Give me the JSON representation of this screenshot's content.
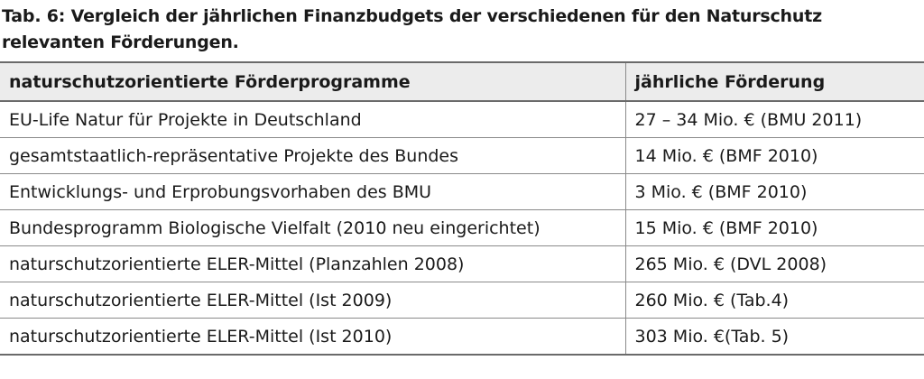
{
  "caption": "Tab. 6: Vergleich der jährlichen Finanzbudgets der verschiedenen für den Naturschutz relevanten Förderungen.",
  "table": {
    "headers": [
      "naturschutzorientierte Förderprogramme",
      "jährliche Förderung"
    ],
    "rows": [
      [
        "EU-Life Natur für Projekte in Deutschland",
        "27 – 34 Mio. € (BMU 2011)"
      ],
      [
        "gesamtstaatlich-repräsentative Projekte des Bundes",
        "14 Mio. € (BMF 2010)"
      ],
      [
        "Entwicklungs- und Erprobungsvorhaben des BMU",
        "3 Mio. € (BMF 2010)"
      ],
      [
        "Bundesprogramm Biologische Vielfalt (2010 neu eingerichtet)",
        "15 Mio. € (BMF 2010)"
      ],
      [
        "naturschutzorientierte ELER-Mittel (Planzahlen 2008)",
        "265 Mio. € (DVL 2008)"
      ],
      [
        "naturschutzorientierte ELER-Mittel (Ist 2009)",
        "260 Mio. € (Tab.4)"
      ],
      [
        "naturschutzorientierte ELER-Mittel (Ist 2010)",
        "303 Mio. €(Tab. 5)"
      ]
    ]
  }
}
